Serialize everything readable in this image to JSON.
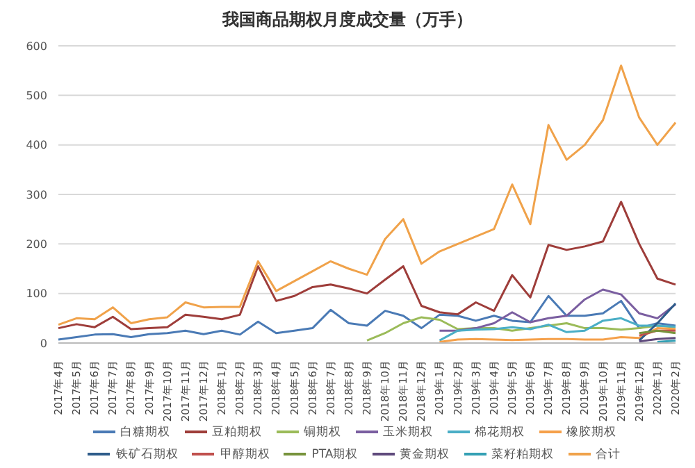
{
  "chart_data": {
    "type": "line",
    "title": "我国商品期权月度成交量（万手）",
    "categories": [
      "2017年4月",
      "2017年5月",
      "2017年6月",
      "2017年7月",
      "2017年8月",
      "2017年9月",
      "2017年10月",
      "2017年11月",
      "2017年12月",
      "2018年1月",
      "2018年2月",
      "2018年3月",
      "2018年4月",
      "2018年5月",
      "2018年6月",
      "2018年7月",
      "2018年8月",
      "2018年9月",
      "2018年10月",
      "2018年11月",
      "2018年12月",
      "2019年1月",
      "2019年2月",
      "2019年3月",
      "2019年4月",
      "2019年5月",
      "2019年6月",
      "2019年7月",
      "2019年8月",
      "2019年9月",
      "2019年10月",
      "2019年11月",
      "2019年12月",
      "2020年1月",
      "2020年2月"
    ],
    "series": [
      {
        "name": "白糖期权",
        "color": "#4a7ab5",
        "values": [
          7,
          12,
          17,
          18,
          12,
          18,
          20,
          25,
          18,
          25,
          17,
          43,
          20,
          25,
          30,
          67,
          40,
          35,
          65,
          55,
          30,
          57,
          55,
          45,
          55,
          45,
          42,
          95,
          55,
          55,
          60,
          85,
          30,
          40,
          35
        ]
      },
      {
        "name": "豆粕期权",
        "color": "#9e3d3a",
        "values": [
          30,
          38,
          32,
          53,
          28,
          30,
          32,
          57,
          53,
          48,
          57,
          155,
          85,
          95,
          113,
          118,
          110,
          100,
          128,
          155,
          75,
          62,
          58,
          82,
          65,
          137,
          92,
          198,
          188,
          195,
          205,
          285,
          200,
          130,
          118
        ]
      },
      {
        "name": "铜期权",
        "color": "#9bbb59",
        "values": [
          null,
          null,
          null,
          null,
          null,
          null,
          null,
          null,
          null,
          null,
          null,
          null,
          null,
          null,
          null,
          null,
          null,
          5,
          20,
          40,
          52,
          47,
          28,
          30,
          30,
          25,
          30,
          35,
          40,
          30,
          30,
          27,
          30,
          35,
          32
        ]
      },
      {
        "name": "玉米期权",
        "color": "#7a5ea0",
        "values": [
          null,
          null,
          null,
          null,
          null,
          null,
          null,
          null,
          null,
          null,
          null,
          null,
          null,
          null,
          null,
          null,
          null,
          null,
          null,
          null,
          null,
          25,
          25,
          30,
          40,
          62,
          42,
          50,
          55,
          88,
          108,
          98,
          60,
          50,
          78
        ]
      },
      {
        "name": "棉花期权",
        "color": "#4aaec6",
        "values": [
          null,
          null,
          null,
          null,
          null,
          null,
          null,
          null,
          null,
          null,
          null,
          null,
          null,
          null,
          null,
          null,
          null,
          null,
          null,
          null,
          null,
          5,
          25,
          27,
          28,
          32,
          28,
          37,
          22,
          25,
          45,
          50,
          35,
          35,
          33
        ]
      },
      {
        "name": "橡胶期权",
        "color": "#f5a04a",
        "values": [
          null,
          null,
          null,
          null,
          null,
          null,
          null,
          null,
          null,
          null,
          null,
          null,
          null,
          null,
          null,
          null,
          null,
          null,
          null,
          null,
          null,
          2,
          7,
          8,
          7,
          6,
          7,
          8,
          8,
          7,
          7,
          12,
          10,
          30,
          28
        ]
      },
      {
        "name": "铁矿石期权",
        "color": "#2e5c8a",
        "values": [
          null,
          null,
          null,
          null,
          null,
          null,
          null,
          null,
          null,
          null,
          null,
          null,
          null,
          null,
          null,
          null,
          null,
          null,
          null,
          null,
          null,
          null,
          null,
          null,
          null,
          null,
          null,
          null,
          null,
          null,
          null,
          null,
          5,
          40,
          80
        ]
      },
      {
        "name": "甲醇期权",
        "color": "#c0504d",
        "values": [
          null,
          null,
          null,
          null,
          null,
          null,
          null,
          null,
          null,
          null,
          null,
          null,
          null,
          null,
          null,
          null,
          null,
          null,
          null,
          null,
          null,
          null,
          null,
          null,
          null,
          null,
          null,
          null,
          null,
          null,
          null,
          null,
          15,
          25,
          25
        ]
      },
      {
        "name": "PTA期权",
        "color": "#77933c",
        "values": [
          null,
          null,
          null,
          null,
          null,
          null,
          null,
          null,
          null,
          null,
          null,
          null,
          null,
          null,
          null,
          null,
          null,
          null,
          null,
          null,
          null,
          null,
          null,
          null,
          null,
          null,
          null,
          null,
          null,
          null,
          null,
          null,
          20,
          25,
          20
        ]
      },
      {
        "name": "黄金期权",
        "color": "#5f4a7c",
        "values": [
          null,
          null,
          null,
          null,
          null,
          null,
          null,
          null,
          null,
          null,
          null,
          null,
          null,
          null,
          null,
          null,
          null,
          null,
          null,
          null,
          null,
          null,
          null,
          null,
          null,
          null,
          null,
          null,
          null,
          null,
          null,
          null,
          3,
          8,
          10
        ]
      },
      {
        "name": "菜籽粕期权",
        "color": "#34a0b4",
        "values": [
          null,
          null,
          null,
          null,
          null,
          null,
          null,
          null,
          null,
          null,
          null,
          null,
          null,
          null,
          null,
          null,
          null,
          null,
          null,
          null,
          null,
          null,
          null,
          null,
          null,
          null,
          null,
          null,
          null,
          null,
          null,
          null,
          null,
          2,
          5
        ]
      },
      {
        "name": "合计",
        "color": "#f0a24a",
        "values": [
          37,
          50,
          48,
          72,
          40,
          48,
          52,
          82,
          72,
          73,
          73,
          165,
          105,
          125,
          145,
          165,
          150,
          138,
          210,
          250,
          160,
          185,
          200,
          215,
          230,
          320,
          240,
          440,
          370,
          400,
          450,
          560,
          455,
          400,
          445
        ]
      }
    ],
    "ylim": [
      0,
      600
    ],
    "yticks": [
      0,
      100,
      200,
      300,
      400,
      500,
      600
    ],
    "grid": "y",
    "legend": "bottom",
    "marker": "none",
    "line_style": "solid"
  }
}
